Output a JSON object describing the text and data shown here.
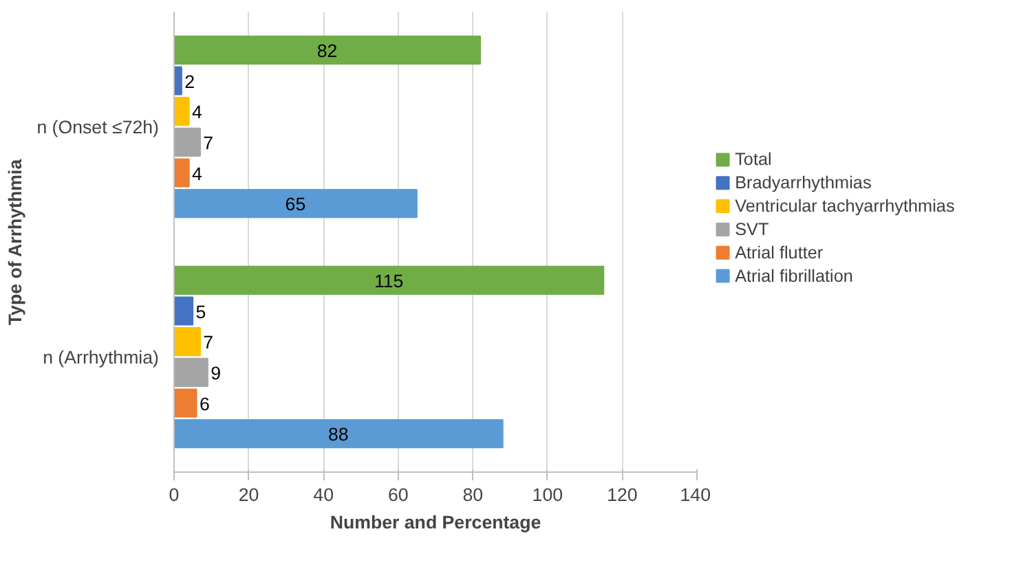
{
  "chart_data": {
    "type": "bar",
    "orientation": "horizontal",
    "xlabel": "Number and Percentage",
    "ylabel": "Type of Arrhythmia",
    "categories": [
      "n (Onset ≤72h)",
      "n (Arrhythmia)"
    ],
    "series": [
      {
        "name": "Total",
        "color": "#70ad47",
        "values": [
          82,
          115
        ]
      },
      {
        "name": "Bradyarrhythmias",
        "color": "#4472c4",
        "values": [
          2,
          5
        ]
      },
      {
        "name": "Ventricular tachyarrhythmias",
        "color": "#ffc000",
        "values": [
          4,
          7
        ]
      },
      {
        "name": "SVT",
        "color": "#a5a5a5",
        "values": [
          7,
          9
        ]
      },
      {
        "name": "Atrial flutter",
        "color": "#ed7d31",
        "values": [
          4,
          6
        ]
      },
      {
        "name": "Atrial fibrillation",
        "color": "#5b9bd5",
        "values": [
          65,
          88
        ]
      }
    ],
    "xlim": [
      0,
      140
    ],
    "xticks": [
      0,
      20,
      40,
      60,
      80,
      100,
      120,
      140
    ],
    "grid": "x",
    "legend": "right",
    "data_labels": true
  }
}
